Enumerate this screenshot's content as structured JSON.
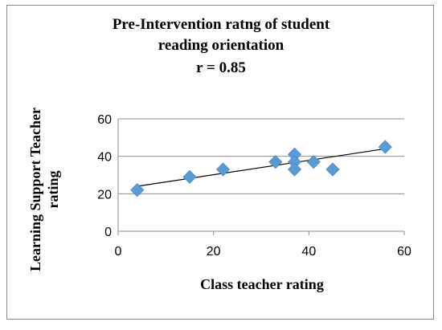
{
  "chart_data": {
    "type": "scatter",
    "title_lines": [
      "Pre-Intervention ratng of student",
      "reading orientation",
      "r = 0.85"
    ],
    "xlabel": "Class teacher rating",
    "ylabel_lines": [
      "Learning Support Teacher",
      "rating"
    ],
    "xlim": [
      0,
      60
    ],
    "ylim": [
      0,
      60
    ],
    "x_ticks": [
      "0",
      "20",
      "40",
      "60"
    ],
    "y_ticks": [
      "0",
      "20",
      "40",
      "60"
    ],
    "grid": "horizontal",
    "legend": "none",
    "marker": "diamond",
    "marker_color": "#5b9bd5",
    "points": [
      {
        "x": 4,
        "y": 22
      },
      {
        "x": 15,
        "y": 29
      },
      {
        "x": 22,
        "y": 33
      },
      {
        "x": 33,
        "y": 37
      },
      {
        "x": 37,
        "y": 41
      },
      {
        "x": 37,
        "y": 37
      },
      {
        "x": 37,
        "y": 33
      },
      {
        "x": 41,
        "y": 37
      },
      {
        "x": 45,
        "y": 33
      },
      {
        "x": 56,
        "y": 45
      }
    ],
    "trendline": {
      "x": [
        4,
        56
      ],
      "y": [
        24,
        44
      ]
    }
  }
}
